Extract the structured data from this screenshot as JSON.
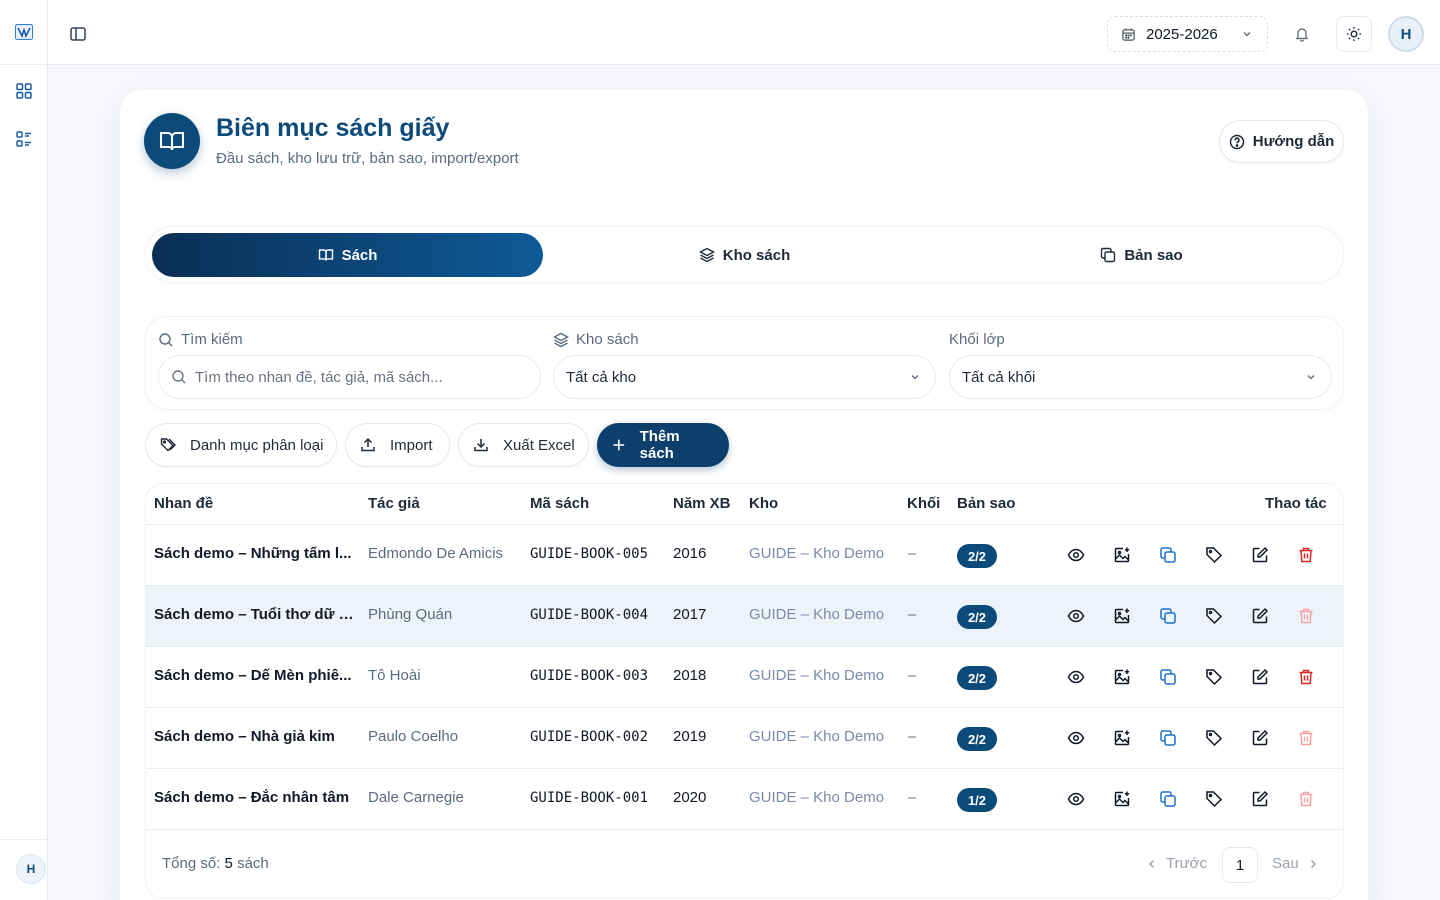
{
  "topbar": {
    "school_year": "2025-2026",
    "user_initial": "H"
  },
  "sidebar": {
    "user_initial": "H"
  },
  "header": {
    "title": "Biên mục sách giấy",
    "subtitle": "Đầu sách, kho lưu trữ, bản sao, import/export",
    "help_label": "Hướng dẫn"
  },
  "tabs": [
    {
      "label": "Sách",
      "active": true
    },
    {
      "label": "Kho sách",
      "active": false
    },
    {
      "label": "Bản sao",
      "active": false
    }
  ],
  "filters": {
    "search_label": "Tìm kiếm",
    "search_placeholder": "Tìm theo nhan đề, tác giả, mã sách...",
    "store_label": "Kho sách",
    "store_value": "Tất cả kho",
    "grade_label": "Khối lớp",
    "grade_value": "Tất cả khối"
  },
  "actions": {
    "category": "Danh mục phân loại",
    "import": "Import",
    "export": "Xuất Excel",
    "add": "Thêm sách"
  },
  "table": {
    "columns": [
      "Nhan đề",
      "Tác giả",
      "Mã sách",
      "Năm XB",
      "Kho",
      "Khối",
      "Bản sao",
      "Thao tác"
    ],
    "rows": [
      {
        "title": "Sách demo – Những tấm l...",
        "author": "Edmondo De Amicis",
        "code": "GUIDE-BOOK-005",
        "year": "2016",
        "store": "GUIDE – Kho Demo",
        "grade": "–",
        "copies": "2/2",
        "delete_enabled": true
      },
      {
        "title": "Sách demo – Tuổi thơ dữ d...",
        "author": "Phùng Quán",
        "code": "GUIDE-BOOK-004",
        "year": "2017",
        "store": "GUIDE – Kho Demo",
        "grade": "–",
        "copies": "2/2",
        "delete_enabled": false
      },
      {
        "title": "Sách demo – Dế Mèn phiê...",
        "author": "Tô Hoài",
        "code": "GUIDE-BOOK-003",
        "year": "2018",
        "store": "GUIDE – Kho Demo",
        "grade": "–",
        "copies": "2/2",
        "delete_enabled": true
      },
      {
        "title": "Sách demo – Nhà giả kim",
        "author": "Paulo Coelho",
        "code": "GUIDE-BOOK-002",
        "year": "2019",
        "store": "GUIDE – Kho Demo",
        "grade": "–",
        "copies": "2/2",
        "delete_enabled": false
      },
      {
        "title": "Sách demo – Đắc nhân tâm",
        "author": "Dale Carnegie",
        "code": "GUIDE-BOOK-001",
        "year": "2020",
        "store": "GUIDE – Kho Demo",
        "grade": "–",
        "copies": "1/2",
        "delete_enabled": false
      }
    ]
  },
  "footer": {
    "total_prefix": "Tổng số:",
    "total_count": "5",
    "total_suffix": "sách",
    "prev": "Trước",
    "page": "1",
    "next": "Sau"
  },
  "colors": {
    "primary": "#0c4a7a",
    "danger": "#dc2626",
    "danger_disabled": "#f3a3a3",
    "copy_icon": "#1d72c9"
  }
}
